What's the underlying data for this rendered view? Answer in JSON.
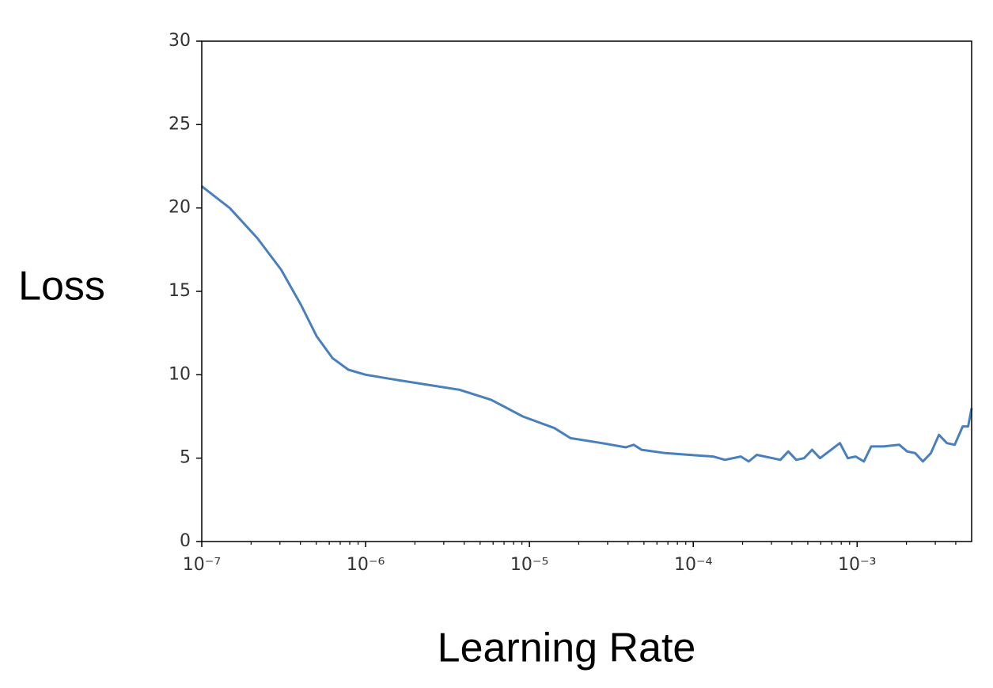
{
  "chart_data": {
    "type": "line",
    "xlabel": "Learning Rate",
    "ylabel": "Loss",
    "xscale": "log",
    "color": "#4a7fbd",
    "x": [
      1e-07,
      1.48e-07,
      2.18e-07,
      3.05e-07,
      4.03e-07,
      5.03e-07,
      6.28e-07,
      7.85e-07,
      1e-06,
      1.53e-06,
      2.39e-06,
      3.74e-06,
      5.83e-06,
      9.1e-06,
      1.42e-05,
      1.78e-05,
      2.77e-05,
      3.87e-05,
      4.33e-05,
      4.84e-05,
      6.76e-05,
      9.45e-05,
      0.000132,
      0.000156,
      0.000195,
      0.000218,
      0.000244,
      0.00034,
      0.00038,
      0.000425,
      0.000475,
      0.000531,
      0.000594,
      0.000785,
      0.000877,
      0.00098,
      0.0011,
      0.00122,
      0.00145,
      0.00181,
      0.00202,
      0.00226,
      0.00252,
      0.00282,
      0.00316,
      0.00353,
      0.00394,
      0.00441,
      0.00476,
      0.005
    ],
    "values": [
      21.3,
      20.0,
      18.2,
      16.3,
      14.2,
      12.3,
      11.0,
      10.3,
      10.0,
      9.7,
      9.4,
      9.1,
      8.5,
      7.5,
      6.8,
      6.2,
      5.9,
      5.65,
      5.8,
      5.5,
      5.3,
      5.2,
      5.1,
      4.9,
      5.1,
      4.8,
      5.2,
      4.9,
      5.4,
      4.9,
      5.0,
      5.5,
      5.0,
      5.9,
      5.0,
      5.1,
      4.8,
      5.7,
      5.7,
      5.8,
      5.4,
      5.3,
      4.8,
      5.3,
      6.4,
      5.9,
      5.8,
      6.9,
      6.9,
      8.0
    ],
    "xlim": [
      1e-07,
      0.005
    ],
    "xticks": [
      {
        "value": 1e-07,
        "label": "10⁻⁷"
      },
      {
        "value": 1e-06,
        "label": "10⁻⁶"
      },
      {
        "value": 1e-05,
        "label": "10⁻⁵"
      },
      {
        "value": 0.0001,
        "label": "10⁻⁴"
      },
      {
        "value": 0.001,
        "label": "10⁻³"
      }
    ],
    "xminorticks": [
      2e-07,
      3e-07,
      4e-07,
      5e-07,
      6e-07,
      7e-07,
      8e-07,
      9e-07,
      2e-06,
      3e-06,
      4e-06,
      5e-06,
      6e-06,
      7e-06,
      8e-06,
      9e-06,
      2e-05,
      3e-05,
      4e-05,
      5e-05,
      6e-05,
      7e-05,
      8e-05,
      9e-05,
      0.0002,
      0.0003,
      0.0004,
      0.0005,
      0.0006,
      0.0007,
      0.0008,
      0.0009,
      0.002,
      0.003,
      0.004
    ],
    "ylim": [
      0,
      30
    ],
    "yticks": [
      0,
      5,
      10,
      15,
      20,
      25,
      30
    ]
  }
}
